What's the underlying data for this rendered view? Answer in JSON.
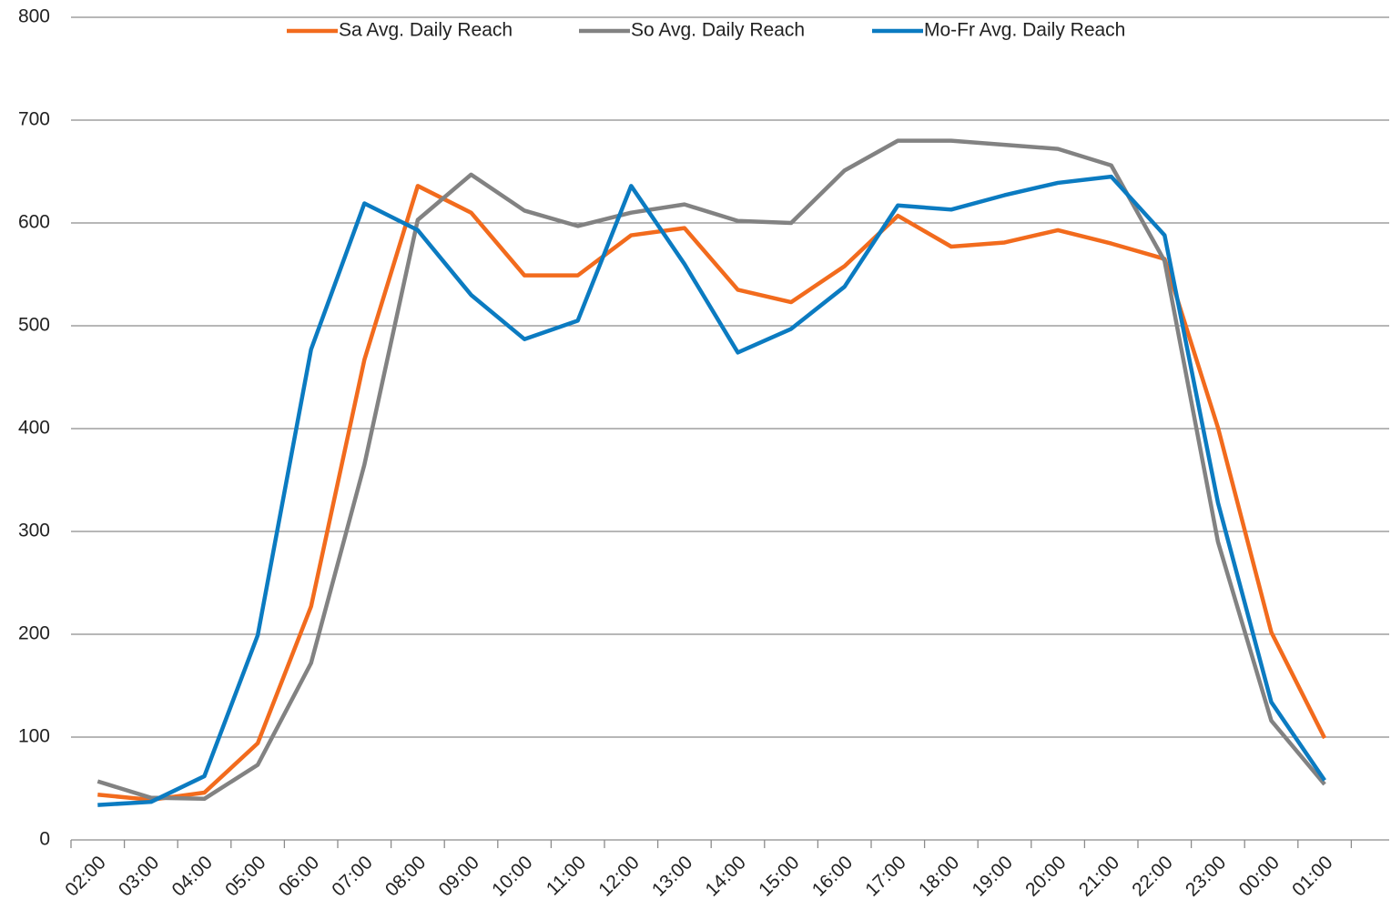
{
  "chart_data": {
    "type": "line",
    "categories": [
      "02:00",
      "03:00",
      "04:00",
      "05:00",
      "06:00",
      "07:00",
      "08:00",
      "09:00",
      "10:00",
      "11:00",
      "12:00",
      "13:00",
      "14:00",
      "15:00",
      "16:00",
      "17:00",
      "18:00",
      "19:00",
      "20:00",
      "21:00",
      "22:00",
      "23:00",
      "00:00",
      "01:00"
    ],
    "series": [
      {
        "name": "Sa Avg. Daily Reach",
        "color": "#f26b1d",
        "values": [
          44,
          39,
          46,
          94,
          227,
          467,
          636,
          610,
          549,
          549,
          588,
          595,
          535,
          523,
          558,
          607,
          577,
          581,
          593,
          580,
          565,
          401,
          202,
          99
        ]
      },
      {
        "name": "So Avg. Daily Reach",
        "color": "#828282",
        "values": [
          57,
          41,
          40,
          73,
          172,
          365,
          603,
          647,
          612,
          597,
          610,
          618,
          602,
          600,
          651,
          680,
          680,
          676,
          672,
          656,
          563,
          290,
          116,
          54
        ]
      },
      {
        "name": "Mo-Fr Avg. Daily Reach",
        "color": "#0b7bc1",
        "values": [
          34,
          37,
          62,
          199,
          477,
          619,
          593,
          530,
          487,
          505,
          636,
          560,
          474,
          497,
          538,
          617,
          613,
          627,
          639,
          645,
          588,
          328,
          134,
          58
        ]
      }
    ],
    "ylim": [
      0,
      800
    ],
    "yticks": [
      0,
      100,
      200,
      300,
      400,
      500,
      600,
      700,
      800
    ],
    "grid": true,
    "legend": "top"
  }
}
